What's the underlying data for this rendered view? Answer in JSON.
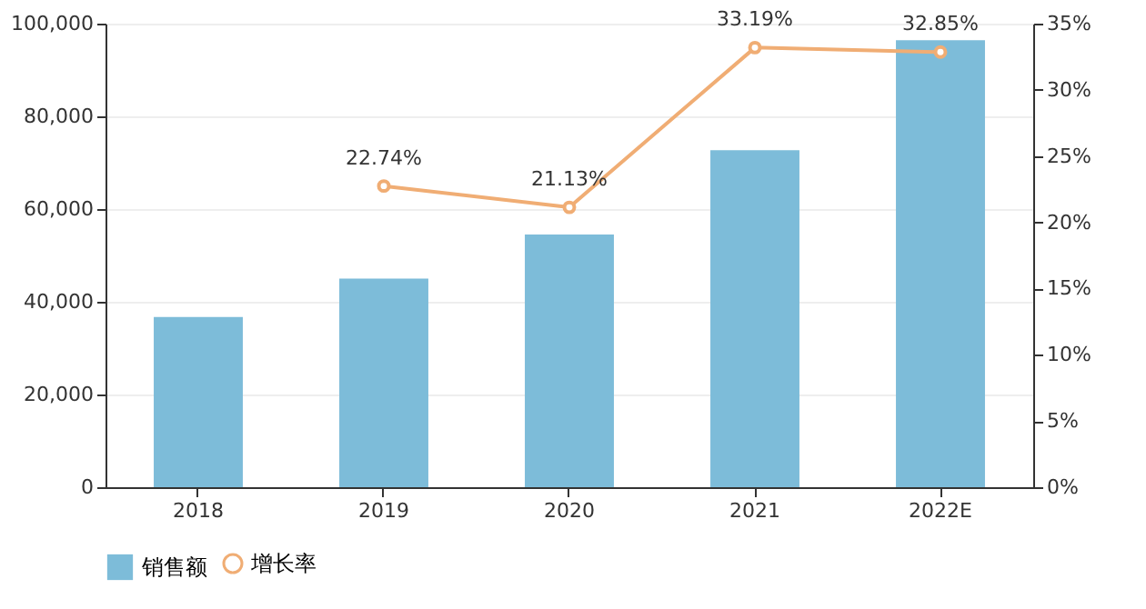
{
  "chart_data": {
    "type": "bar",
    "categories": [
      "2018",
      "2019",
      "2020",
      "2021",
      "2022E"
    ],
    "series": [
      {
        "name": "销售额",
        "color": "#7dbcd9",
        "values": [
          36700,
          45000,
          54500,
          72700,
          96400
        ]
      },
      {
        "name": "增长率",
        "type": "line",
        "axis": "y2",
        "color": "#f0ad74",
        "marker": "circle",
        "values": [
          null,
          22.74,
          21.13,
          33.19,
          32.85
        ],
        "value_labels": [
          null,
          "22.74%",
          "21.13%",
          "33.19%",
          "32.85%"
        ]
      }
    ],
    "ylim": [
      0,
      100000
    ],
    "yticks": [
      {
        "value": 0,
        "label": "0"
      },
      {
        "value": 20000,
        "label": "20,000"
      },
      {
        "value": 40000,
        "label": "40,000"
      },
      {
        "value": 60000,
        "label": "60,000"
      },
      {
        "value": 80000,
        "label": "80,000"
      },
      {
        "value": 100000,
        "label": "100,000"
      }
    ],
    "y2lim": [
      0,
      35
    ],
    "y2ticks": [
      {
        "value": 0,
        "label": "0%"
      },
      {
        "value": 5,
        "label": "5%"
      },
      {
        "value": 10,
        "label": "10%"
      },
      {
        "value": 15,
        "label": "15%"
      },
      {
        "value": 20,
        "label": "20%"
      },
      {
        "value": 25,
        "label": "25%"
      },
      {
        "value": 30,
        "label": "30%"
      },
      {
        "value": 35,
        "label": "35%"
      }
    ],
    "grid": "y",
    "legend": "bottom"
  }
}
